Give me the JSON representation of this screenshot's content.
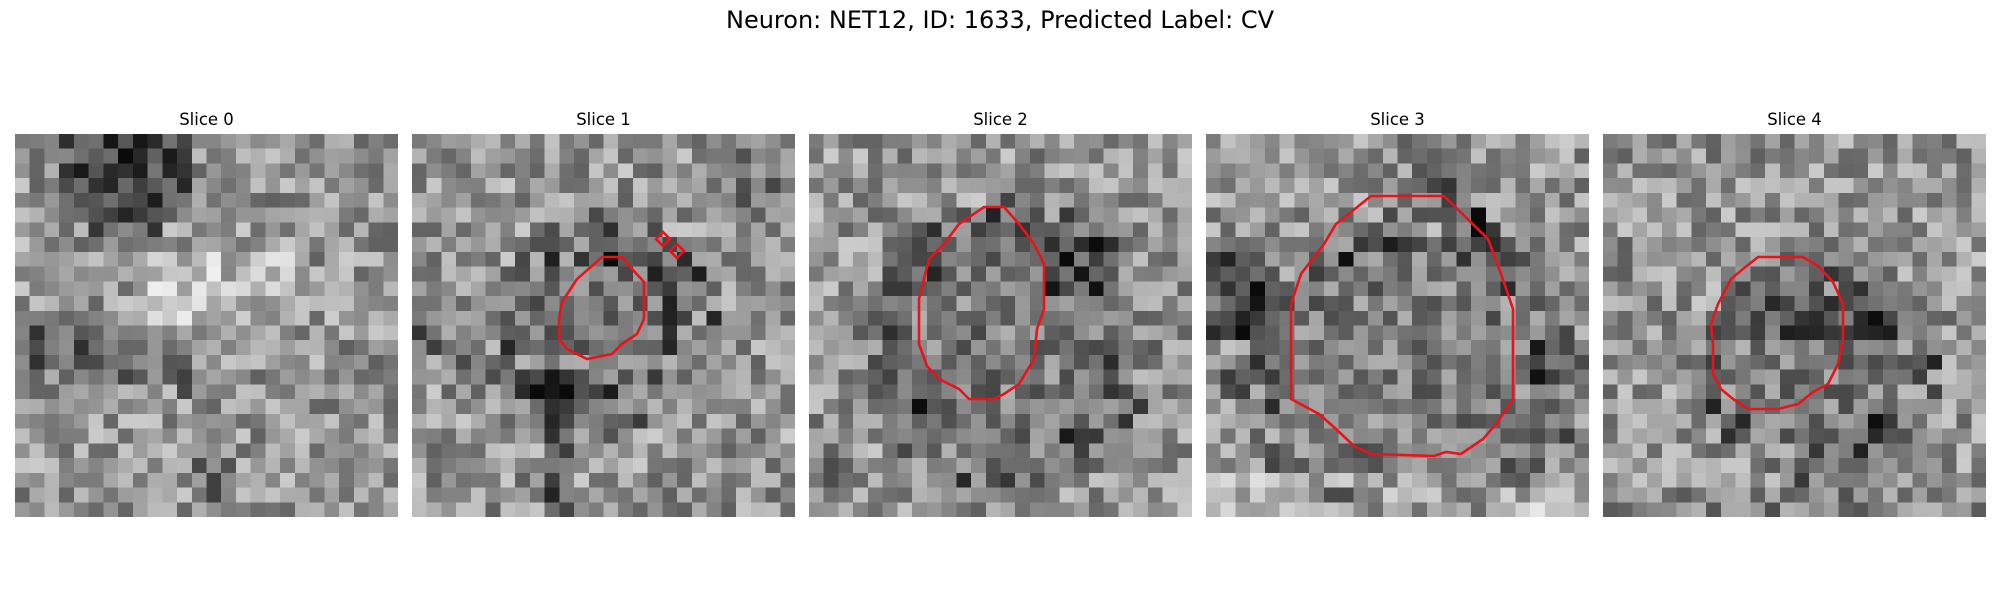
{
  "figure": {
    "title": "Neuron: NET12, ID: 1633, Predicted Label: CV"
  },
  "panels": [
    {
      "title": "Slice 0",
      "has_contour": false
    },
    {
      "title": "Slice 1",
      "has_contour": true
    },
    {
      "title": "Slice 2",
      "has_contour": true
    },
    {
      "title": "Slice 3",
      "has_contour": true
    },
    {
      "title": "Slice 4",
      "has_contour": true
    }
  ],
  "colors": {
    "contour": "#e8131b",
    "background": "#ffffff"
  }
}
